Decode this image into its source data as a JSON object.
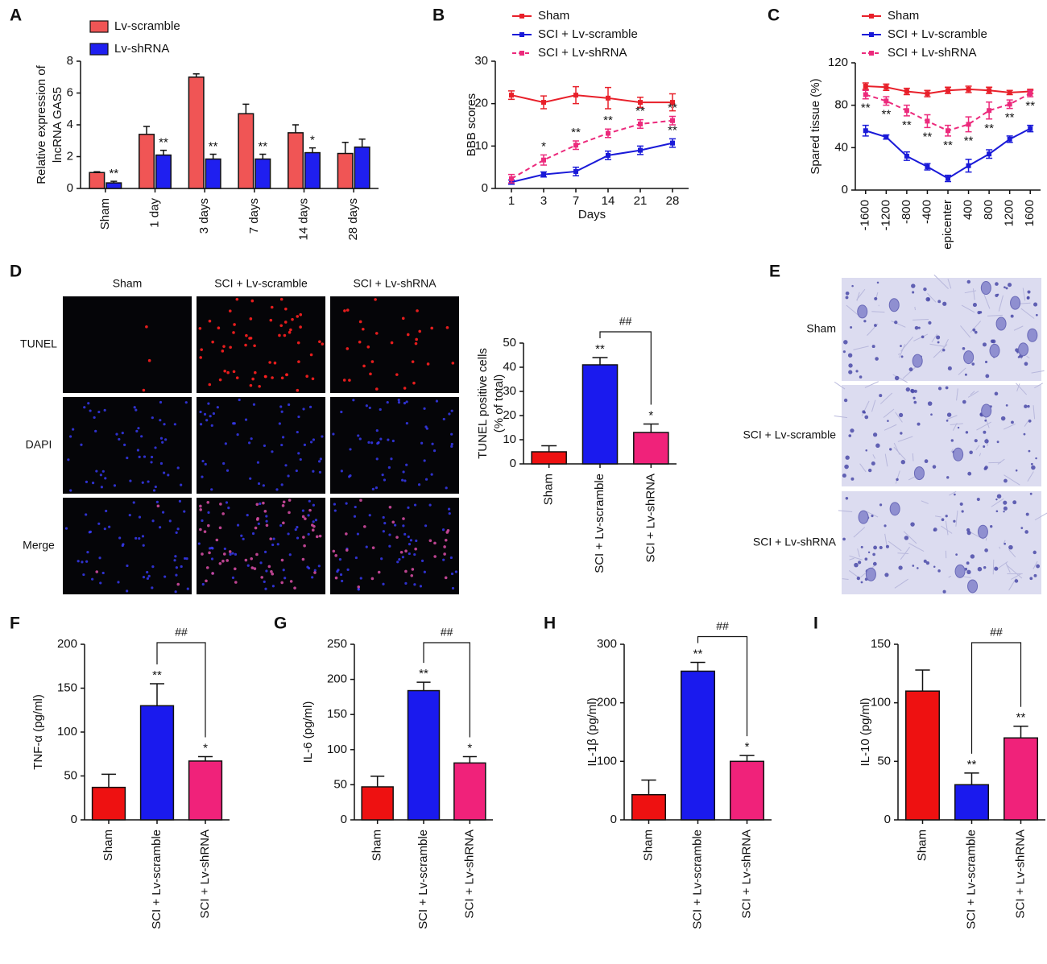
{
  "chart_data": [
    {
      "panel": "A",
      "type": "bar",
      "ylabel": [
        "Relative expression of",
        "lncRNA GAS5"
      ],
      "categories": [
        "Sham",
        "1 day",
        "3 days",
        "7 days",
        "14 days",
        "28 days"
      ],
      "series": [
        {
          "name": "Lv-scramble",
          "color": "#f05555",
          "values": [
            1.0,
            3.4,
            7.0,
            4.7,
            3.5,
            2.2
          ],
          "errors": [
            0.05,
            0.5,
            0.2,
            0.6,
            0.5,
            0.7
          ],
          "significance": [
            null,
            null,
            null,
            null,
            null,
            null
          ]
        },
        {
          "name": "Lv-shRNA",
          "color": "#1f1ff0",
          "values": [
            0.35,
            2.1,
            1.85,
            1.85,
            2.25,
            2.6
          ],
          "errors": [
            0.1,
            0.3,
            0.3,
            0.3,
            0.3,
            0.5
          ],
          "significance": [
            "**",
            "**",
            "**",
            "**",
            "*",
            null
          ]
        }
      ],
      "ylim": [
        0,
        8
      ],
      "yticks": [
        0,
        2,
        4,
        6,
        8
      ],
      "legend": "upper left"
    },
    {
      "panel": "B",
      "type": "line",
      "xlabel": "Days",
      "ylabel": "BBB scores",
      "categories": [
        "1",
        "3",
        "7",
        "14",
        "21",
        "28"
      ],
      "series": [
        {
          "name": "Sham",
          "color": "#e8202a",
          "values": [
            22,
            20.3,
            22,
            21.3,
            20.3,
            20.3
          ],
          "errors": [
            1,
            1.5,
            2,
            2.5,
            1.2,
            2
          ],
          "significance": [
            null,
            null,
            null,
            null,
            null,
            null
          ]
        },
        {
          "name": "SCI + Lv-scramble",
          "color": "#1a1ad8",
          "values": [
            1.5,
            3.3,
            4,
            7.8,
            9,
            10.7
          ],
          "errors": [
            0.5,
            0.6,
            1,
            1,
            1,
            1
          ],
          "significance": [
            null,
            null,
            null,
            null,
            null,
            "**"
          ]
        },
        {
          "name": "SCI + Lv-shRNA",
          "color": "#ec2a7c",
          "dashed": true,
          "values": [
            2.3,
            6.7,
            10.2,
            13,
            15.2,
            16
          ],
          "errors": [
            1,
            1.2,
            1,
            1,
            1,
            1
          ],
          "significance": [
            null,
            "*",
            "**",
            "**",
            "**",
            "**"
          ]
        }
      ],
      "ylim": [
        0,
        30
      ],
      "yticks": [
        0,
        10,
        20,
        30
      ],
      "legend": "upper center"
    },
    {
      "panel": "C",
      "type": "line",
      "ylabel": "Spared tissue (%)",
      "categories": [
        "-1600",
        "-1200",
        "-800",
        "-400",
        "epicenter",
        "400",
        "800",
        "1200",
        "1600"
      ],
      "series": [
        {
          "name": "Sham",
          "color": "#e8202a",
          "values": [
            98,
            97,
            93,
            91,
            94,
            95,
            94,
            92,
            93
          ],
          "errors": [
            3,
            3,
            3,
            3,
            3,
            3,
            3,
            2,
            2
          ],
          "significance": [
            null,
            null,
            null,
            null,
            null,
            null,
            null,
            null,
            null
          ]
        },
        {
          "name": "SCI + Lv-scramble",
          "color": "#1a1ad8",
          "values": [
            56,
            50,
            32,
            22,
            11,
            23,
            34,
            48,
            58
          ],
          "errors": [
            5,
            2,
            4,
            3,
            3,
            6,
            4,
            3,
            3
          ],
          "significance": [
            null,
            null,
            null,
            null,
            null,
            null,
            null,
            null,
            null
          ]
        },
        {
          "name": "SCI + Lv-shRNA",
          "color": "#ec2a7c",
          "dashed": true,
          "values": [
            90,
            84,
            75,
            65,
            56,
            62,
            75,
            81,
            91
          ],
          "errors": [
            4,
            4,
            5,
            6,
            5,
            7,
            8,
            4,
            3
          ],
          "significance": [
            "**",
            "**",
            "**",
            "**",
            "**",
            "**",
            "**",
            "**",
            "**"
          ]
        }
      ],
      "ylim": [
        0,
        120
      ],
      "yticks": [
        0,
        40,
        80,
        120
      ],
      "legend": "upper center"
    },
    {
      "type": "bar",
      "ylabel": [
        "TUNEL positive cells",
        "(% of total)"
      ],
      "categories": [
        "Sham",
        "SCI + Lv-scramble",
        "SCI + Lv-shRNA"
      ],
      "values": [
        5,
        41,
        13
      ],
      "errors": [
        2.5,
        3,
        3.5
      ],
      "colors": [
        "#ee1111",
        "#1a1aee",
        "#f0227a"
      ],
      "significance": [
        null,
        "**",
        "*"
      ],
      "bracket": "##",
      "ylim": [
        0,
        50
      ],
      "yticks": [
        0,
        10,
        20,
        30,
        40,
        50
      ]
    },
    {
      "panel": "F",
      "type": "bar",
      "ylabel": "TNF-α (pg/ml)",
      "categories": [
        "Sham",
        "SCI + Lv-scramble",
        "SCI + Lv-shRNA"
      ],
      "values": [
        37,
        130,
        67
      ],
      "errors": [
        15,
        25,
        5
      ],
      "colors": [
        "#ee1111",
        "#1a1aee",
        "#f0227a"
      ],
      "significance": [
        null,
        "**",
        "*"
      ],
      "bracket": "##",
      "ylim": [
        0,
        200
      ],
      "yticks": [
        0,
        50,
        100,
        150,
        200
      ]
    },
    {
      "panel": "G",
      "type": "bar",
      "ylabel": "IL-6 (pg/ml)",
      "categories": [
        "Sham",
        "SCI + Lv-scramble",
        "SCI + Lv-shRNA"
      ],
      "values": [
        47,
        184,
        81
      ],
      "errors": [
        15,
        12,
        9
      ],
      "colors": [
        "#ee1111",
        "#1a1aee",
        "#f0227a"
      ],
      "significance": [
        null,
        "**",
        "*"
      ],
      "bracket": "##",
      "ylim": [
        0,
        250
      ],
      "yticks": [
        0,
        50,
        100,
        150,
        200,
        250
      ]
    },
    {
      "panel": "H",
      "type": "bar",
      "ylabel": "IL-1β (pg/ml)",
      "categories": [
        "Sham",
        "SCI + Lv-scramble",
        "SCI + Lv-shRNA"
      ],
      "values": [
        43,
        254,
        100
      ],
      "errors": [
        25,
        15,
        10
      ],
      "colors": [
        "#ee1111",
        "#1a1aee",
        "#f0227a"
      ],
      "significance": [
        null,
        "**",
        "*"
      ],
      "bracket": "##",
      "ylim": [
        0,
        300
      ],
      "yticks": [
        0,
        100,
        200,
        300
      ]
    },
    {
      "panel": "I",
      "type": "bar",
      "ylabel": "IL-10 (pg/ml)",
      "categories": [
        "Sham",
        "SCI + Lv-scramble",
        "SCI + Lv-shRNA"
      ],
      "values": [
        110,
        30,
        70
      ],
      "errors": [
        18,
        10,
        10
      ],
      "colors": [
        "#ee1111",
        "#1a1aee",
        "#f0227a"
      ],
      "significance": [
        null,
        "**",
        "**"
      ],
      "bracket": "##",
      "ylim": [
        0,
        150
      ],
      "yticks": [
        0,
        50,
        100,
        150
      ]
    }
  ],
  "micrographs_d": {
    "panel": "D",
    "columns": [
      "Sham",
      "SCI + Lv-scramble",
      "SCI + Lv-shRNA"
    ],
    "rows": [
      "TUNEL",
      "DAPI",
      "Merge"
    ]
  },
  "micrographs_e": {
    "panel": "E",
    "rows": [
      "Sham",
      "SCI + Lv-scramble",
      "SCI + Lv-shRNA"
    ]
  }
}
